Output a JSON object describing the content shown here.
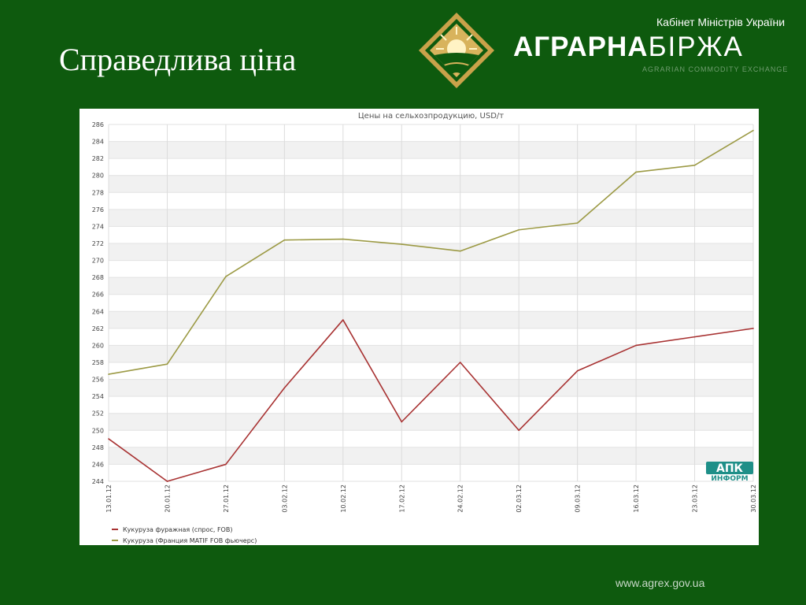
{
  "slide": {
    "title": "Справедлива ціна",
    "footer_url": "www.agrex.gov.ua"
  },
  "logo": {
    "cabinet": "Кабінет Міністрів України",
    "brand_bold": "АГРАРНА",
    "brand_light": "БІРЖА",
    "brand_sub": "AGRARIAN COMMODITY EXCHANGE"
  },
  "chart_data": {
    "type": "line",
    "title": "Цены на сельхозпродукцию, USD/т",
    "xlabel": "",
    "ylabel": "",
    "ylim": [
      244,
      286
    ],
    "yticks": [
      244,
      246,
      248,
      250,
      252,
      254,
      256,
      258,
      260,
      262,
      264,
      266,
      268,
      270,
      272,
      274,
      276,
      278,
      280,
      282,
      284,
      286
    ],
    "categories": [
      "13.01.12",
      "20.01.12",
      "27.01.12",
      "03.02.12",
      "10.02.12",
      "17.02.12",
      "24.02.12",
      "02.03.12",
      "09.03.12",
      "16.03.12",
      "23.03.12",
      "30.03.12"
    ],
    "grid": true,
    "legend_position": "bottom-left",
    "series": [
      {
        "name": "Кукуруза фуражная (спрос, FOB)",
        "color": "#a83232",
        "values": [
          249,
          244,
          246,
          255,
          263,
          251,
          258,
          250,
          257,
          260,
          261,
          262
        ]
      },
      {
        "name": "Кукуруза (Франция MATIF FOB фьючерс)",
        "color": "#9c9a45",
        "values": [
          256.6,
          257.8,
          268.1,
          272.4,
          272.5,
          271.9,
          271.1,
          273.6,
          274.4,
          280.4,
          281.2,
          285.3
        ]
      }
    ],
    "watermark": {
      "top": "АПК",
      "bottom": "ИНФОРМ"
    }
  },
  "colors": {
    "background": "#0e5a0e",
    "logo_gold": "#c9a24a"
  }
}
